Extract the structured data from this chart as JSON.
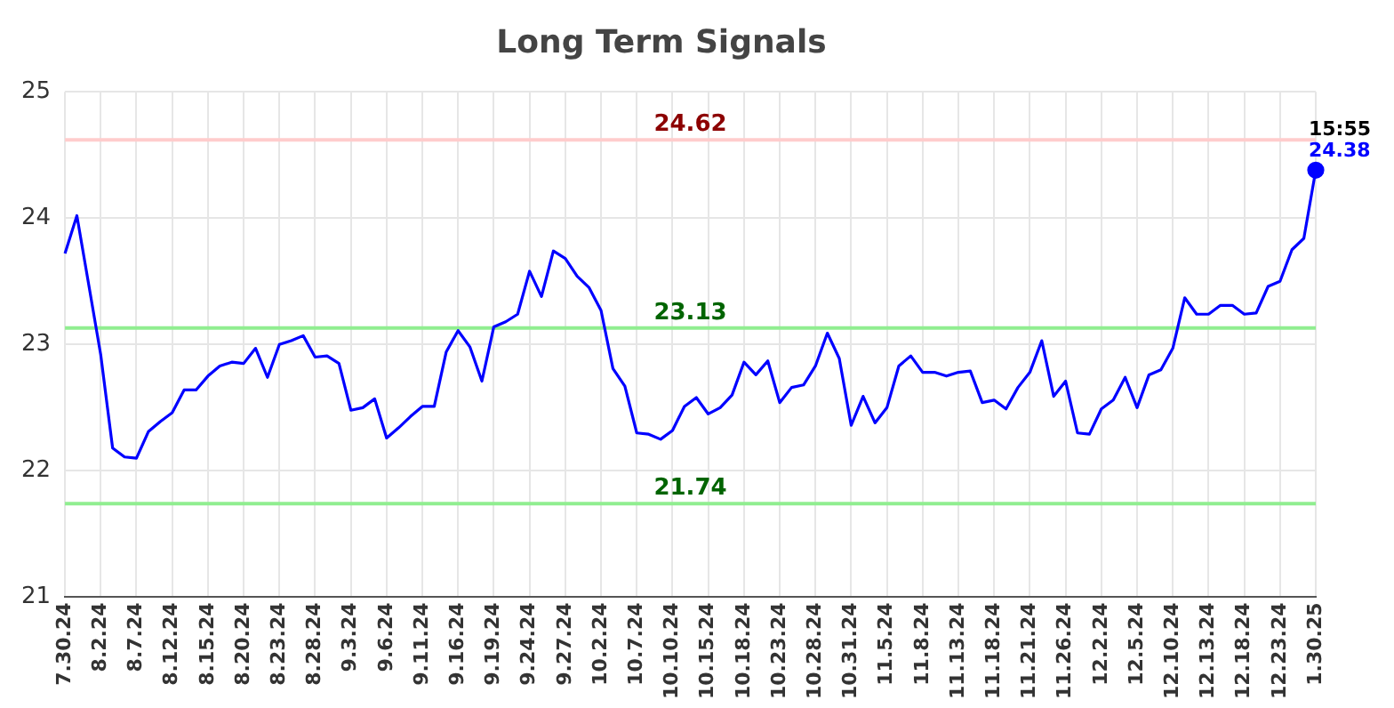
{
  "chart_data": {
    "type": "line",
    "title": "Long Term Signals",
    "categories": [
      "7.30.24",
      null,
      null,
      "8.2.24",
      null,
      null,
      "8.7.24",
      null,
      null,
      "8.12.24",
      null,
      null,
      "8.15.24",
      null,
      null,
      "8.20.24",
      null,
      null,
      "8.23.24",
      null,
      null,
      "8.28.24",
      null,
      null,
      "9.3.24",
      null,
      null,
      "9.6.24",
      null,
      null,
      "9.11.24",
      null,
      null,
      "9.16.24",
      null,
      null,
      "9.19.24",
      null,
      null,
      "9.24.24",
      null,
      null,
      "9.27.24",
      null,
      null,
      "10.2.24",
      null,
      null,
      "10.7.24",
      null,
      null,
      "10.10.24",
      null,
      null,
      "10.15.24",
      null,
      null,
      "10.18.24",
      null,
      null,
      "10.23.24",
      null,
      null,
      "10.28.24",
      null,
      null,
      "10.31.24",
      null,
      null,
      "11.5.24",
      null,
      null,
      "11.8.24",
      null,
      null,
      "11.13.24",
      null,
      null,
      "11.18.24",
      null,
      null,
      "11.21.24",
      null,
      null,
      "11.26.24",
      null,
      null,
      "12.2.24",
      null,
      null,
      "12.5.24",
      null,
      null,
      "12.10.24",
      null,
      null,
      "12.13.24",
      null,
      null,
      "12.18.24",
      null,
      null,
      "12.23.24",
      null,
      null,
      "1.30.25"
    ],
    "series": [
      {
        "color": "#0000ff",
        "values": [
          23.72,
          24.02,
          23.47,
          22.92,
          22.18,
          22.11,
          22.1,
          22.31,
          22.39,
          22.46,
          22.64,
          22.64,
          22.75,
          22.83,
          22.86,
          22.85,
          22.97,
          22.74,
          23.0,
          23.03,
          23.07,
          22.9,
          22.91,
          22.85,
          22.48,
          22.5,
          22.57,
          22.26,
          22.34,
          22.43,
          22.51,
          22.51,
          22.94,
          23.11,
          22.98,
          22.71,
          23.14,
          23.18,
          23.24,
          23.58,
          23.38,
          23.74,
          23.68,
          23.54,
          23.45,
          23.27,
          22.81,
          22.67,
          22.3,
          22.29,
          22.25,
          22.32,
          22.51,
          22.58,
          22.45,
          22.5,
          22.6,
          22.86,
          22.76,
          22.87,
          22.54,
          22.66,
          22.68,
          22.83,
          23.09,
          22.89,
          22.36,
          22.59,
          22.38,
          22.5,
          22.83,
          22.91,
          22.78,
          22.78,
          22.75,
          22.78,
          22.79,
          22.54,
          22.56,
          22.49,
          22.66,
          22.78,
          23.03,
          22.59,
          22.71,
          22.3,
          22.29,
          22.49,
          22.56,
          22.74,
          22.5,
          22.76,
          22.8,
          22.97,
          23.37,
          23.24,
          23.24,
          23.31,
          23.31,
          23.24,
          23.25,
          23.46,
          23.5,
          23.75,
          23.84,
          24.38
        ]
      }
    ],
    "ylim": [
      21,
      25
    ],
    "yticks": [
      21,
      22,
      23,
      24,
      25
    ],
    "grid": true,
    "marker": "none",
    "line_style": "solid",
    "ref_lines": [
      {
        "axis": "y",
        "value": 24.62,
        "label": "24.62",
        "color": "#ffcccc"
      },
      {
        "axis": "y",
        "value": 23.13,
        "label": "23.13",
        "color": "#90ee90"
      },
      {
        "axis": "y",
        "value": 21.74,
        "label": "21.74",
        "color": "#90ee90"
      }
    ],
    "annotations": [
      {
        "text": "15:55",
        "x": "1.30.25",
        "y": 24.38
      },
      {
        "text": "24.38",
        "x": "1.30.25",
        "y": 24.38
      }
    ]
  }
}
